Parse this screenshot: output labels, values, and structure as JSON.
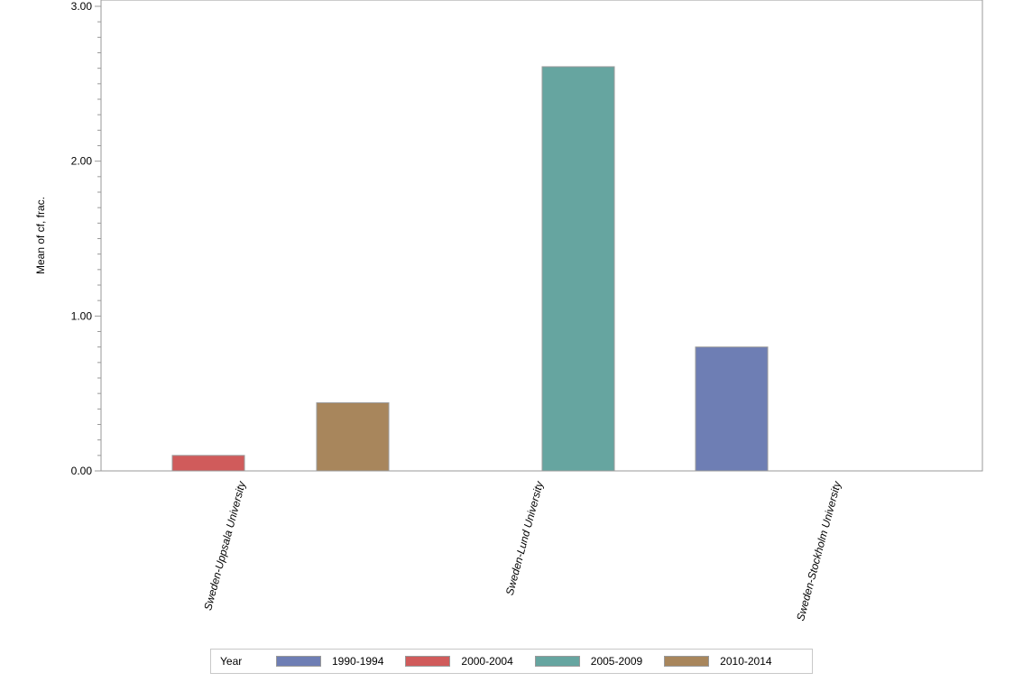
{
  "chart_data": {
    "type": "bar",
    "title": "",
    "xlabel": "",
    "ylabel": "Mean of cf, frac.",
    "ylim": [
      0,
      3
    ],
    "yticks": [
      "0.00",
      "1.00",
      "2.00",
      "3.00"
    ],
    "grid": false,
    "legend_position": "bottom",
    "legend_title": "Year",
    "categories": [
      "Sweden-Uppsala University",
      "Sweden-Lund University",
      "Sweden-Stockholm University"
    ],
    "series": [
      {
        "name": "1990-1994",
        "color": "#6e7eb4",
        "values": [
          null,
          null,
          0.8
        ]
      },
      {
        "name": "2000-2004",
        "color": "#d05b5b",
        "values": [
          0.1,
          null,
          null
        ]
      },
      {
        "name": "2005-2009",
        "color": "#66a5a0",
        "values": [
          null,
          2.61,
          null
        ]
      },
      {
        "name": "2010-2014",
        "color": "#a8865c",
        "values": [
          0.44,
          null,
          null
        ]
      }
    ]
  },
  "legend": {
    "title": "Year",
    "items": [
      {
        "label": "1990-1994",
        "color": "#6e7eb4"
      },
      {
        "label": "2000-2004",
        "color": "#d05b5b"
      },
      {
        "label": "2005-2009",
        "color": "#66a5a0"
      },
      {
        "label": "2010-2014",
        "color": "#a8865c"
      }
    ]
  }
}
